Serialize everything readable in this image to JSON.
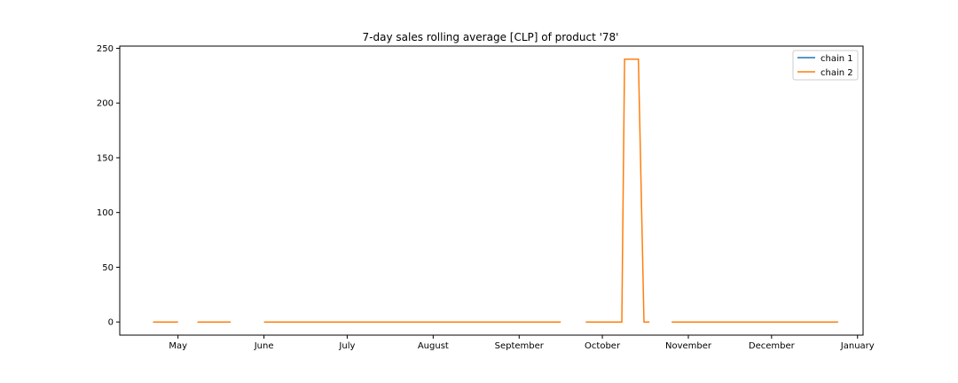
{
  "chart_data": {
    "type": "line",
    "title": "7-day sales rolling average [CLP] of product '78'",
    "xlabel": "",
    "ylabel": "",
    "x_axis": {
      "kind": "date",
      "range": [
        "2022-04-10",
        "2023-01-03"
      ],
      "ticks": [
        {
          "date": "2022-05-01",
          "label": "May"
        },
        {
          "date": "2022-06-01",
          "label": "June"
        },
        {
          "date": "2022-07-01",
          "label": "July"
        },
        {
          "date": "2022-08-01",
          "label": "August"
        },
        {
          "date": "2022-09-01",
          "label": "September"
        },
        {
          "date": "2022-10-01",
          "label": "October"
        },
        {
          "date": "2022-11-01",
          "label": "November"
        },
        {
          "date": "2022-12-01",
          "label": "December"
        },
        {
          "date": "2023-01-01",
          "label": "January"
        }
      ]
    },
    "y_axis": {
      "range": [
        -12,
        252
      ],
      "ticks": [
        0,
        50,
        100,
        150,
        200,
        250
      ]
    },
    "grid": false,
    "legend": {
      "position": "top-right"
    },
    "series": [
      {
        "name": "chain 1",
        "color": "#1f77b4",
        "segments": []
      },
      {
        "name": "chain 2",
        "color": "#ff7f0e",
        "segments": [
          [
            [
              "2022-04-22",
              0
            ],
            [
              "2022-05-01",
              0
            ]
          ],
          [
            [
              "2022-05-08",
              0
            ],
            [
              "2022-05-20",
              0
            ]
          ],
          [
            [
              "2022-06-01",
              0
            ],
            [
              "2022-09-16",
              0
            ]
          ],
          [
            [
              "2022-09-25",
              0
            ],
            [
              "2022-10-08",
              0
            ],
            [
              "2022-10-09",
              240
            ],
            [
              "2022-10-14",
              240
            ],
            [
              "2022-10-16",
              0
            ],
            [
              "2022-10-18",
              0
            ]
          ],
          [
            [
              "2022-10-26",
              0
            ],
            [
              "2022-12-25",
              0
            ]
          ]
        ]
      }
    ]
  }
}
